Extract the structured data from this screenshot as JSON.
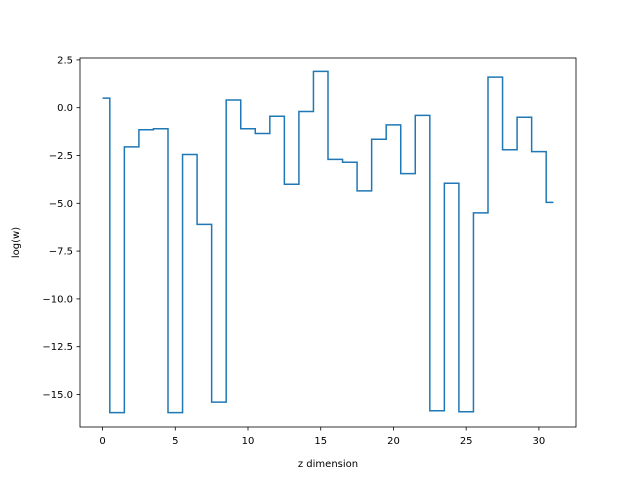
{
  "chart_data": {
    "type": "line",
    "drawstyle": "steps-mid",
    "title": "",
    "xlabel": "z dimension",
    "ylabel": "log(w)",
    "xlim": [
      -1.55,
      32.55
    ],
    "ylim": [
      -16.7,
      2.6
    ],
    "xticks": [
      0,
      5,
      10,
      15,
      20,
      25,
      30
    ],
    "xtick_labels": [
      "0",
      "5",
      "10",
      "15",
      "20",
      "25",
      "30"
    ],
    "yticks": [
      2.5,
      0.0,
      -2.5,
      -5.0,
      -7.5,
      -10.0,
      -12.5,
      -15.0
    ],
    "ytick_labels": [
      "2.5",
      "0.0",
      "−2.5",
      "−5.0",
      "−7.5",
      "−10.0",
      "−12.5",
      "−15.0"
    ],
    "grid": false,
    "series": [
      {
        "color": "#1f77b4",
        "x": [
          0,
          1,
          2,
          3,
          4,
          5,
          6,
          7,
          8,
          9,
          10,
          11,
          12,
          13,
          14,
          15,
          16,
          17,
          18,
          19,
          20,
          21,
          22,
          23,
          24,
          25,
          26,
          27,
          28,
          29,
          30,
          31
        ],
        "y": [
          0.5,
          -15.95,
          -2.05,
          -1.15,
          -1.1,
          -15.95,
          -2.45,
          -6.1,
          -15.4,
          0.4,
          -1.1,
          -1.35,
          -0.45,
          -4.0,
          -0.2,
          1.9,
          -2.7,
          -2.85,
          -4.35,
          -1.65,
          -0.9,
          -3.45,
          -0.4,
          -15.85,
          -3.95,
          -15.9,
          -5.5,
          1.6,
          -2.2,
          -0.5,
          -2.3,
          -4.95
        ]
      }
    ]
  }
}
